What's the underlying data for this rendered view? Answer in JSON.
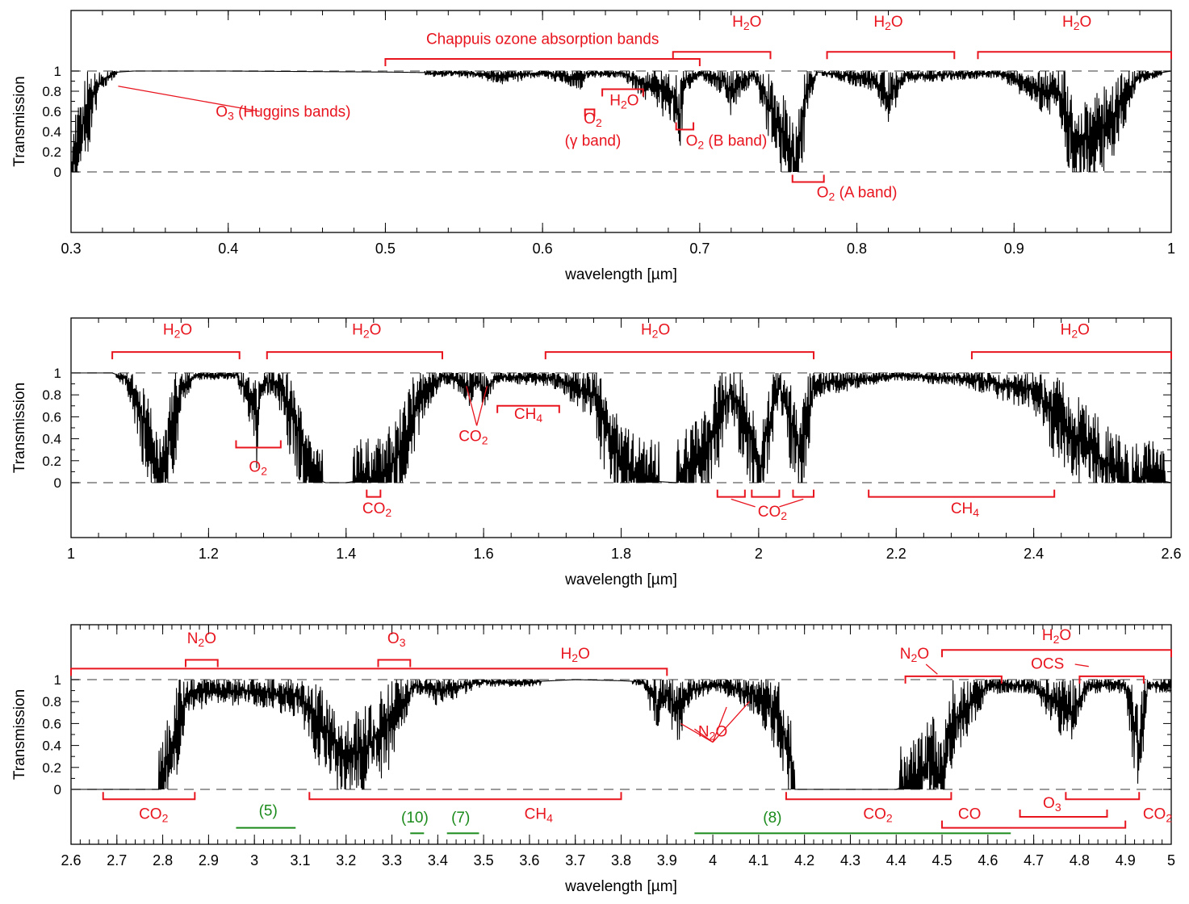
{
  "chart_data": [
    {
      "type": "line",
      "title": "",
      "xlabel": "wavelength [µm]",
      "ylabel": "Transmission",
      "xlim": [
        0.3,
        1.0
      ],
      "ylim": [
        -0.6,
        1.6
      ],
      "xticks": [
        0.3,
        0.4,
        0.5,
        0.6,
        0.7,
        0.8,
        0.9,
        1.0
      ],
      "xtick_labels": [
        "0.3",
        "0.4",
        "0.5",
        "0.6",
        "0.7",
        "0.8",
        "0.9",
        "1"
      ],
      "minor_step": 0.02,
      "yticks": [
        0,
        0.2,
        0.4,
        0.6,
        0.8,
        1
      ],
      "ytick_labels": [
        "0",
        "0.2",
        "0.4",
        "0.6",
        "0.8",
        "1"
      ],
      "reference_lines": [
        0,
        1
      ],
      "series": [
        {
          "x": [
            0.3,
            0.305,
            0.31,
            0.315,
            0.32,
            0.325,
            0.33,
            0.34,
            0.4,
            0.5,
            0.55,
            0.575,
            0.6,
            0.626,
            0.628,
            0.63,
            0.65,
            0.685,
            0.687,
            0.69,
            0.7,
            0.715,
            0.72,
            0.725,
            0.735,
            0.759,
            0.761,
            0.763,
            0.765,
            0.768,
            0.775,
            0.81,
            0.82,
            0.83,
            0.89,
            0.93,
            0.94,
            0.95,
            0.96,
            0.98,
            1.0
          ],
          "y": [
            0.05,
            0.3,
            0.6,
            0.8,
            0.9,
            0.96,
            0.99,
            1.0,
            1.0,
            0.99,
            0.98,
            0.95,
            0.98,
            0.92,
            0.97,
            0.98,
            0.98,
            0.75,
            0.45,
            0.9,
            0.98,
            0.9,
            0.8,
            0.88,
            0.97,
            0.2,
            0.05,
            0.3,
            0.5,
            0.8,
            0.99,
            0.92,
            0.75,
            0.95,
            0.98,
            0.75,
            0.22,
            0.4,
            0.5,
            0.95,
            1.0
          ]
        }
      ],
      "annotations": [
        {
          "text": "Chappuis ozone absorption bands",
          "x": 0.6,
          "y": 1.27
        },
        {
          "text": "H₂O",
          "x": 0.73,
          "y": 1.44
        },
        {
          "text": "H₂O",
          "x": 0.82,
          "y": 1.44
        },
        {
          "text": "H₂O",
          "x": 0.94,
          "y": 1.44
        },
        {
          "text": "O₃ (Huggins bands)",
          "x": 0.435,
          "y": 0.55
        },
        {
          "text": "H₂O",
          "x": 0.652,
          "y": 0.66
        },
        {
          "text": "O₂",
          "x": 0.632,
          "y": 0.48
        },
        {
          "text": "(γ band)",
          "x": 0.632,
          "y": 0.26
        },
        {
          "text": "O₂ (B band)",
          "x": 0.717,
          "y": 0.26
        },
        {
          "text": "O₂ (A band)",
          "x": 0.8,
          "y": -0.25
        }
      ],
      "brackets": [
        {
          "x": [
            0.5,
            0.7
          ],
          "y": 1.12
        },
        {
          "x": [
            0.683,
            0.745
          ],
          "y": 1.19
        },
        {
          "x": [
            0.781,
            0.862
          ],
          "y": 1.19
        },
        {
          "x": [
            0.877,
            1.0
          ],
          "y": 1.19
        },
        {
          "x": [
            0.638,
            0.664
          ],
          "y": 0.82
        },
        {
          "x": [
            0.627,
            0.633
          ],
          "y": 0.62
        },
        {
          "x": [
            0.685,
            0.696
          ],
          "y": 0.42
        },
        {
          "x": [
            0.759,
            0.779
          ],
          "y": -0.1
        }
      ],
      "pointers": [
        {
          "from": [
            0.33,
            0.85
          ],
          "to": [
            0.42,
            0.6
          ]
        }
      ]
    },
    {
      "type": "line",
      "title": "",
      "xlabel": "wavelength [µm]",
      "ylabel": "Transmission",
      "xlim": [
        1.0,
        2.6
      ],
      "ylim": [
        -0.5,
        1.5
      ],
      "xticks": [
        1.0,
        1.2,
        1.4,
        1.6,
        1.8,
        2.0,
        2.2,
        2.4,
        2.6
      ],
      "xtick_labels": [
        "1",
        "1.2",
        "1.4",
        "1.6",
        "1.8",
        "2",
        "2.2",
        "2.4",
        "2.6"
      ],
      "minor_step": 0.04,
      "yticks": [
        0,
        0.2,
        0.4,
        0.6,
        0.8,
        1
      ],
      "ytick_labels": [
        "0",
        "0.2",
        "0.4",
        "0.6",
        "0.8",
        "1"
      ],
      "reference_lines": [
        0,
        1
      ],
      "series": [
        {
          "x": [
            1.0,
            1.06,
            1.08,
            1.1,
            1.12,
            1.13,
            1.14,
            1.16,
            1.18,
            1.24,
            1.26,
            1.27,
            1.28,
            1.3,
            1.33,
            1.35,
            1.37,
            1.4,
            1.45,
            1.48,
            1.51,
            1.54,
            1.57,
            1.58,
            1.59,
            1.6,
            1.62,
            1.7,
            1.76,
            1.8,
            1.83,
            1.88,
            1.92,
            1.96,
            1.99,
            2.0,
            2.01,
            2.03,
            2.05,
            2.06,
            2.08,
            2.2,
            2.3,
            2.4,
            2.45,
            2.5,
            2.54,
            2.56,
            2.6
          ],
          "y": [
            1.0,
            1.0,
            0.95,
            0.7,
            0.2,
            0.05,
            0.3,
            0.85,
            0.98,
            0.98,
            0.8,
            0.6,
            0.92,
            0.9,
            0.5,
            0.05,
            0.0,
            0.0,
            0.05,
            0.3,
            0.8,
            0.97,
            0.92,
            0.85,
            0.95,
            0.85,
            0.97,
            0.95,
            0.8,
            0.2,
            0.02,
            0.0,
            0.3,
            0.85,
            0.4,
            0.05,
            0.4,
            0.9,
            0.5,
            0.3,
            0.9,
            0.98,
            0.95,
            0.85,
            0.5,
            0.2,
            0.0,
            0.05,
            0.0
          ]
        }
      ],
      "annotations": [
        {
          "text": "H₂O",
          "x": 1.155,
          "y": 1.35
        },
        {
          "text": "H₂O",
          "x": 1.43,
          "y": 1.35
        },
        {
          "text": "H₂O",
          "x": 1.85,
          "y": 1.35
        },
        {
          "text": "H₂O",
          "x": 2.46,
          "y": 1.35
        },
        {
          "text": "CH₄",
          "x": 1.665,
          "y": 0.58
        },
        {
          "text": "CO₂",
          "x": 1.585,
          "y": 0.38
        },
        {
          "text": "O₂",
          "x": 1.272,
          "y": 0.1
        },
        {
          "text": "CO₂",
          "x": 1.445,
          "y": -0.28
        },
        {
          "text": "CO₂",
          "x": 2.02,
          "y": -0.31
        },
        {
          "text": "CH₄",
          "x": 2.3,
          "y": -0.28
        }
      ],
      "brackets": [
        {
          "x": [
            1.06,
            1.245
          ],
          "y": 1.19
        },
        {
          "x": [
            1.285,
            1.54
          ],
          "y": 1.19
        },
        {
          "x": [
            1.69,
            2.08
          ],
          "y": 1.19
        },
        {
          "x": [
            2.31,
            2.6
          ],
          "y": 1.19
        },
        {
          "x": [
            1.24,
            1.305
          ],
          "y": 0.32
        },
        {
          "x": [
            1.62,
            1.71
          ],
          "y": 0.7
        },
        {
          "x": [
            1.43,
            1.45
          ],
          "y": -0.13
        },
        {
          "x": [
            1.94,
            1.98
          ],
          "y": -0.13
        },
        {
          "x": [
            1.99,
            2.03
          ],
          "y": -0.13
        },
        {
          "x": [
            2.05,
            2.08
          ],
          "y": -0.13
        },
        {
          "x": [
            2.16,
            2.43
          ],
          "y": -0.13
        }
      ],
      "pointers": [
        {
          "from": [
            1.575,
            0.88
          ],
          "to": [
            1.59,
            0.52
          ]
        },
        {
          "from": [
            1.605,
            0.88
          ],
          "to": [
            1.59,
            0.52
          ]
        },
        {
          "from": [
            1.96,
            -0.15
          ],
          "to": [
            1.995,
            -0.22
          ]
        },
        {
          "from": [
            2.065,
            -0.15
          ],
          "to": [
            2.03,
            -0.22
          ]
        }
      ]
    },
    {
      "type": "line",
      "title": "",
      "xlabel": "wavelength [µm]",
      "ylabel": "Transmission",
      "xlim": [
        2.6,
        5.0
      ],
      "ylim": [
        -0.5,
        1.5
      ],
      "xticks": [
        2.6,
        2.7,
        2.8,
        2.9,
        3.0,
        3.1,
        3.2,
        3.3,
        3.4,
        3.5,
        3.6,
        3.7,
        3.8,
        3.9,
        4.0,
        4.1,
        4.2,
        4.3,
        4.4,
        4.5,
        4.6,
        4.7,
        4.8,
        4.9,
        5.0
      ],
      "xtick_labels": [
        "2.6",
        "2.7",
        "2.8",
        "2.9",
        "3",
        "3.1",
        "3.2",
        "3.3",
        "3.4",
        "3.5",
        "3.6",
        "3.7",
        "3.8",
        "3.9",
        "4",
        "4.1",
        "4.2",
        "4.3",
        "4.4",
        "4.5",
        "4.6",
        "4.7",
        "4.8",
        "4.9",
        "5"
      ],
      "minor_step": 0.02,
      "yticks": [
        0,
        0.2,
        0.4,
        0.6,
        0.8,
        1
      ],
      "ytick_labels": [
        "0",
        "0.2",
        "0.4",
        "0.6",
        "0.8",
        "1"
      ],
      "reference_lines": [
        0,
        1
      ],
      "series": [
        {
          "x": [
            2.6,
            2.67,
            2.79,
            2.82,
            2.85,
            2.9,
            3.0,
            3.1,
            3.2,
            3.25,
            3.35,
            3.4,
            3.5,
            3.6,
            3.7,
            3.8,
            3.85,
            3.88,
            3.9,
            3.92,
            3.95,
            4.0,
            4.05,
            4.1,
            4.14,
            4.17,
            4.18,
            4.25,
            4.4,
            4.43,
            4.48,
            4.5,
            4.52,
            4.6,
            4.7,
            4.78,
            4.82,
            4.9,
            4.93,
            4.95,
            5.0
          ],
          "y": [
            0.0,
            0.0,
            0.0,
            0.4,
            0.85,
            0.9,
            0.9,
            0.85,
            0.3,
            0.4,
            0.95,
            0.9,
            0.98,
            0.98,
            1.0,
            0.99,
            0.98,
            0.75,
            0.9,
            0.7,
            0.9,
            0.96,
            0.92,
            0.85,
            0.7,
            0.3,
            0.0,
            0.0,
            0.0,
            0.05,
            0.3,
            0.05,
            0.6,
            0.95,
            0.95,
            0.7,
            0.95,
            0.95,
            0.4,
            0.95,
            0.95
          ]
        }
      ],
      "annotations": [
        {
          "text": "N₂O",
          "x": 2.885,
          "y": 1.33
        },
        {
          "text": "O₃",
          "x": 3.31,
          "y": 1.33
        },
        {
          "text": "H₂O",
          "x": 3.7,
          "y": 1.19
        },
        {
          "text": "N₂O",
          "x": 4.44,
          "y": 1.19
        },
        {
          "text": "H₂O",
          "x": 4.75,
          "y": 1.36
        },
        {
          "text": "OCS",
          "x": 4.73,
          "y": 1.1
        },
        {
          "text": "N₂O",
          "x": 4.0,
          "y": 0.48
        },
        {
          "text": "CO₂",
          "x": 2.78,
          "y": -0.27
        },
        {
          "text": "(5)",
          "x": 3.03,
          "y": -0.24
        },
        {
          "text": "(10)",
          "x": 3.35,
          "y": -0.3
        },
        {
          "text": "(7)",
          "x": 3.45,
          "y": -0.3
        },
        {
          "text": "CH₄",
          "x": 3.62,
          "y": -0.27
        },
        {
          "text": "(8)",
          "x": 4.13,
          "y": -0.3
        },
        {
          "text": "CO₂",
          "x": 4.36,
          "y": -0.27
        },
        {
          "text": "CO",
          "x": 4.56,
          "y": -0.27
        },
        {
          "text": "O₃",
          "x": 4.74,
          "y": -0.17
        },
        {
          "text": "CO₂",
          "x": 4.97,
          "y": -0.27
        }
      ],
      "brackets": [
        {
          "x": [
            2.6,
            3.9
          ],
          "y": 1.1,
          "color": "red"
        },
        {
          "x": [
            2.85,
            2.92
          ],
          "y": 1.18,
          "color": "red"
        },
        {
          "x": [
            3.27,
            3.34
          ],
          "y": 1.18,
          "color": "red"
        },
        {
          "x": [
            4.5,
            5.0
          ],
          "y": 1.27,
          "color": "red"
        },
        {
          "x": [
            4.42,
            4.63
          ],
          "y": 1.03,
          "color": "red"
        },
        {
          "x": [
            4.8,
            4.94
          ],
          "y": 1.03,
          "color": "red"
        },
        {
          "x": [
            2.67,
            2.87
          ],
          "y": -0.09,
          "color": "red"
        },
        {
          "x": [
            3.12,
            3.8
          ],
          "y": -0.09,
          "color": "red"
        },
        {
          "x": [
            4.16,
            4.52
          ],
          "y": -0.09,
          "color": "red"
        },
        {
          "x": [
            4.77,
            4.93
          ],
          "y": -0.09,
          "color": "red"
        },
        {
          "x": [
            4.67,
            4.86
          ],
          "y": -0.25,
          "color": "red"
        },
        {
          "x": [
            4.5,
            4.9
          ],
          "y": -0.35,
          "color": "red"
        },
        {
          "x": [
            2.96,
            3.09
          ],
          "y": -0.35,
          "color": "green",
          "plain": true
        },
        {
          "x": [
            3.34,
            3.37
          ],
          "y": -0.4,
          "color": "green",
          "plain": true
        },
        {
          "x": [
            3.42,
            3.49
          ],
          "y": -0.4,
          "color": "green",
          "plain": true
        },
        {
          "x": [
            3.96,
            4.65
          ],
          "y": -0.4,
          "color": "green",
          "plain": true
        }
      ],
      "pointers": [
        {
          "from": [
            4.465,
            1.14
          ],
          "to": [
            4.49,
            1.05
          ]
        },
        {
          "from": [
            4.79,
            1.14
          ],
          "to": [
            4.82,
            1.12
          ]
        },
        {
          "from": [
            3.93,
            0.6
          ],
          "to": [
            4.0,
            0.43
          ]
        },
        {
          "from": [
            3.96,
            0.55
          ],
          "to": [
            4.0,
            0.43
          ]
        },
        {
          "from": [
            4.03,
            0.75
          ],
          "to": [
            4.0,
            0.43
          ]
        },
        {
          "from": [
            4.08,
            0.8
          ],
          "to": [
            4.0,
            0.43
          ]
        }
      ]
    }
  ],
  "colors": {
    "annotation_red": "#e8141e",
    "annotation_green": "#1a8a1a",
    "reference_line": "#7a7a7a"
  }
}
